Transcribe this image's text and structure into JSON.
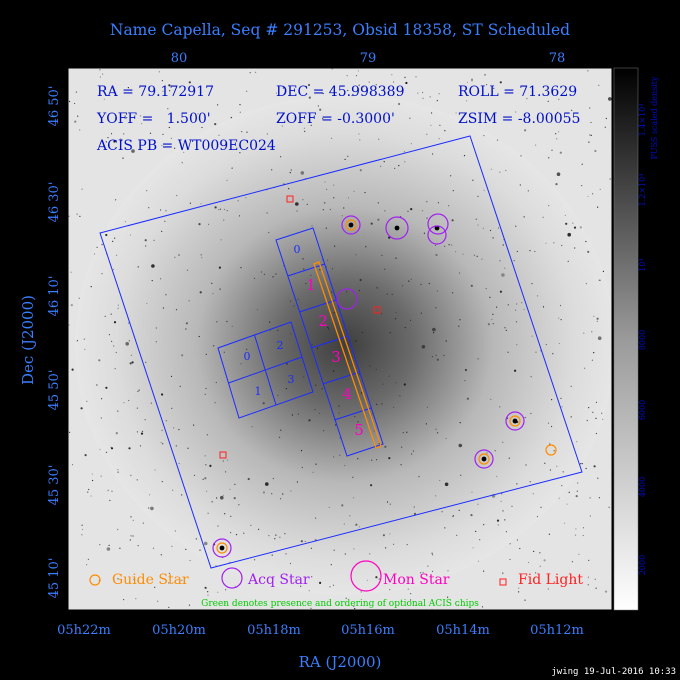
{
  "title": "Name Capella, Seq # 291253, Obsid 18358, ST Scheduled",
  "info": {
    "ra": "RA = 79.172917",
    "dec": "DEC = 45.998389",
    "roll": "ROLL = 71.3629",
    "yoff": "YOFF =   1.500'",
    "zoff": "ZOFF = -0.3000'",
    "zsim": "ZSIM = -8.00055",
    "acis_pb": "ACIS PB = WT009EC024"
  },
  "top_axis_ticks": [
    "80",
    "79",
    "78"
  ],
  "bottom_axis_ticks": [
    "05h22m",
    "05h20m",
    "05h18m",
    "05h16m",
    "05h14m",
    "05h12m"
  ],
  "left_axis_ticks": [
    "46 50'",
    "46 30'",
    "46 10'",
    "45 50'",
    "45 30'",
    "45 10'"
  ],
  "xlabel": "RA (J2000)",
  "ylabel": "Dec (J2000)",
  "colorbar": {
    "label": "PUSS scaled density",
    "ticks": [
      "2000",
      "4000",
      "6000",
      "8000",
      "10⁴",
      "1.2×10⁴",
      "1.4×10⁴"
    ]
  },
  "chips": {
    "aci_i": [
      "0",
      "2",
      "1",
      "3"
    ],
    "aci_s": [
      "0",
      "1",
      "2",
      "3",
      "4",
      "5"
    ]
  },
  "legend": {
    "guide": "Guide Star",
    "acq": "Acq Star",
    "mon": "Mon Star",
    "fid": "Fid Light"
  },
  "note": "Green denotes presence and ordering of optional ACIS chips",
  "footer": "jwing 19-Jul-2016 10:33",
  "colors": {
    "title": "#3a7fff",
    "info": "#0010c8",
    "guide": "#ff8c00",
    "acq": "#a020f0",
    "mon": "#ff00c0",
    "fid": "#ff2020",
    "note": "#00cc00",
    "axis": "#3a7fff"
  }
}
